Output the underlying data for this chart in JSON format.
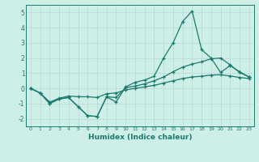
{
  "title": "",
  "xlabel": "Humidex (Indice chaleur)",
  "x": [
    0,
    1,
    2,
    3,
    4,
    5,
    6,
    7,
    8,
    9,
    10,
    11,
    12,
    13,
    14,
    15,
    16,
    17,
    18,
    19,
    20,
    21,
    22,
    23
  ],
  "line1": [
    0.0,
    -0.3,
    -1.0,
    -0.7,
    -0.6,
    -1.2,
    -1.8,
    -1.85,
    -0.55,
    -0.9,
    0.1,
    0.4,
    0.55,
    0.8,
    2.0,
    3.0,
    4.4,
    5.1,
    2.55,
    2.0,
    1.05,
    1.5,
    1.1,
    0.75
  ],
  "line2": [
    0.0,
    -0.3,
    -1.0,
    -0.7,
    -0.6,
    -1.2,
    -1.8,
    -1.85,
    -0.55,
    -0.6,
    0.05,
    0.15,
    0.3,
    0.5,
    0.75,
    1.1,
    1.4,
    1.6,
    1.75,
    1.95,
    2.0,
    1.55,
    1.05,
    0.75
  ],
  "line3": [
    0.0,
    -0.3,
    -0.9,
    -0.65,
    -0.5,
    -0.55,
    -0.55,
    -0.6,
    -0.35,
    -0.3,
    -0.1,
    0.0,
    0.1,
    0.2,
    0.35,
    0.5,
    0.65,
    0.75,
    0.8,
    0.88,
    0.9,
    0.82,
    0.72,
    0.65
  ],
  "line_color": "#1a7a6e",
  "bg_color": "#ceeee8",
  "grid_color": "#b8d8d2",
  "ylim": [
    -2.5,
    5.5
  ],
  "yticks": [
    -2,
    -1,
    0,
    1,
    2,
    3,
    4,
    5
  ],
  "marker": "+"
}
